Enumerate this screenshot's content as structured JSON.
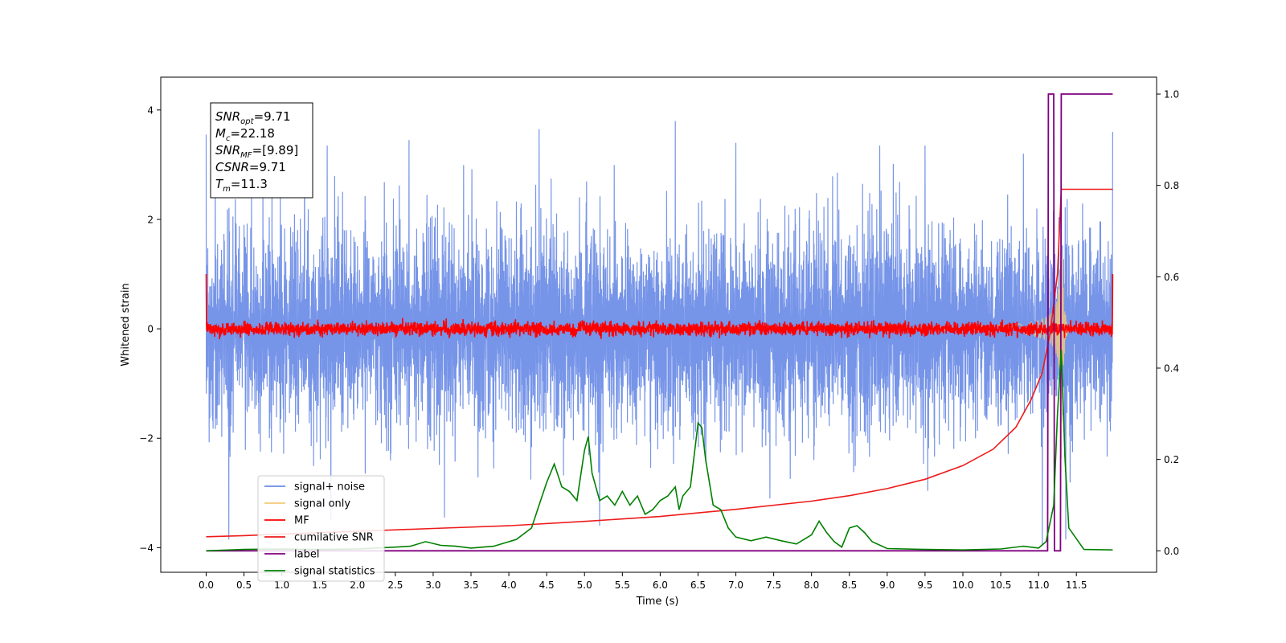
{
  "chart_data": {
    "type": "line",
    "xlabel": "Time (s)",
    "ylabel": "Whitened strain",
    "xlim": [
      -0.6,
      12.56
    ],
    "ylim": [
      -4.45,
      4.6
    ],
    "y2lim": [
      -0.047,
      1.037
    ],
    "x_ticks": [
      0.0,
      0.5,
      1.0,
      1.5,
      2.0,
      2.5,
      3.0,
      3.5,
      4.0,
      4.5,
      5.0,
      5.5,
      6.0,
      6.5,
      7.0,
      7.5,
      8.0,
      8.5,
      9.0,
      9.5,
      10.0,
      10.5,
      11.0,
      11.5
    ],
    "x_tick_labels": [
      "0.0",
      "0.5",
      "1.0",
      "1.5",
      "2.0",
      "2.5",
      "3.0",
      "3.5",
      "4.0",
      "4.5",
      "5.0",
      "5.5",
      "6.0",
      "6.5",
      "7.0",
      "7.5",
      "8.0",
      "8.5",
      "9.0",
      "9.5",
      "10.0",
      "10.5",
      "11.0",
      "11.5"
    ],
    "y_ticks": [
      -4,
      -2,
      0,
      2,
      4
    ],
    "y_tick_labels": [
      "−4",
      "−2",
      "0",
      "2",
      "4"
    ],
    "y2_ticks": [
      0.0,
      0.2,
      0.4,
      0.6,
      0.8,
      1.0
    ],
    "y2_tick_labels": [
      "0.0",
      "0.2",
      "0.4",
      "0.6",
      "0.8",
      "1.0"
    ],
    "grid": false,
    "legend_position": "bottom-left",
    "colors": {
      "signal_noise": "#6a8be6",
      "signal_only": "#f5c978",
      "mf": "#ff0000",
      "cumulative_snr": "#ee1a1a",
      "label": "#800080",
      "signal_statistics": "#008000"
    },
    "annotation": {
      "lines": [
        {
          "sym": "SNR",
          "sub": "opt",
          "val": "=9.71"
        },
        {
          "sym": "M",
          "sub": "c",
          "val": "=22.18"
        },
        {
          "sym": "SNR",
          "sub": "MF",
          "val": "=[9.89]"
        },
        {
          "sym": "CSNR",
          "sub": "",
          "val": "=9.71"
        },
        {
          "sym": "T",
          "sub": "m",
          "val": "=11.3"
        }
      ]
    },
    "series": [
      {
        "name": "signal+ noise",
        "axis": "left",
        "style": "noise",
        "x_range": [
          0.0,
          11.98
        ],
        "amplitude": 1.9,
        "notable_peaks": [
          [
            0.0,
            3.55
          ],
          [
            0.12,
            3.35
          ],
          [
            0.3,
            -3.85
          ],
          [
            1.3,
            3.35
          ],
          [
            1.6,
            3.35
          ],
          [
            2.68,
            3.45
          ],
          [
            4.4,
            3.65
          ],
          [
            6.2,
            3.8
          ],
          [
            7.0,
            3.4
          ],
          [
            8.9,
            3.35
          ],
          [
            9.5,
            3.35
          ],
          [
            10.8,
            3.2
          ],
          [
            11.3,
            3.55
          ],
          [
            11.98,
            3.6
          ],
          [
            1.65,
            -3.5
          ],
          [
            3.15,
            -3.45
          ],
          [
            5.2,
            -3.6
          ],
          [
            7.45,
            -3.1
          ],
          [
            11.05,
            -3.95
          ],
          [
            11.36,
            -3.85
          ]
        ]
      },
      {
        "name": "signal only",
        "axis": "left",
        "style": "chirp",
        "x_range": [
          0.0,
          11.98
        ],
        "merger_time": 11.3,
        "peak_amplitude": 2.6
      },
      {
        "name": "MF",
        "axis": "left",
        "style": "noise",
        "x_range": [
          0.0,
          11.98
        ],
        "amplitude": 0.13,
        "edge_values": [
          1.0,
          1.0
        ]
      },
      {
        "name": "cumilative SNR",
        "axis": "left",
        "x": [
          0.0,
          0.5,
          1.0,
          2.0,
          3.0,
          4.0,
          5.0,
          6.0,
          7.0,
          8.0,
          8.5,
          9.0,
          9.5,
          10.0,
          10.4,
          10.7,
          10.9,
          11.05,
          11.15,
          11.25,
          11.3,
          11.98
        ],
        "y": [
          -3.8,
          -3.78,
          -3.75,
          -3.7,
          -3.65,
          -3.6,
          -3.52,
          -3.43,
          -3.3,
          -3.15,
          -3.05,
          -2.92,
          -2.75,
          -2.5,
          -2.2,
          -1.8,
          -1.3,
          -0.8,
          -0.1,
          1.0,
          2.55,
          2.55
        ]
      },
      {
        "name": "label",
        "axis": "right",
        "x": [
          0.0,
          11.12,
          11.13,
          11.2,
          11.21,
          11.29,
          11.3,
          11.98
        ],
        "y": [
          0.0,
          0.0,
          1.0,
          1.0,
          0.0,
          0.0,
          1.0,
          1.0
        ]
      },
      {
        "name": "signal statistics",
        "axis": "right",
        "x": [
          0.0,
          0.5,
          1.0,
          1.5,
          2.0,
          2.5,
          2.7,
          2.9,
          3.1,
          3.3,
          3.5,
          3.8,
          4.1,
          4.3,
          4.4,
          4.5,
          4.6,
          4.7,
          4.8,
          4.9,
          5.0,
          5.05,
          5.1,
          5.2,
          5.3,
          5.4,
          5.5,
          5.6,
          5.7,
          5.8,
          5.9,
          6.0,
          6.1,
          6.2,
          6.25,
          6.3,
          6.4,
          6.5,
          6.55,
          6.6,
          6.7,
          6.8,
          6.9,
          7.0,
          7.2,
          7.4,
          7.6,
          7.8,
          8.0,
          8.1,
          8.2,
          8.3,
          8.4,
          8.5,
          8.6,
          8.7,
          8.8,
          9.0,
          9.5,
          10.0,
          10.5,
          10.8,
          11.0,
          11.1,
          11.2,
          11.25,
          11.3,
          11.35,
          11.4,
          11.6,
          11.98
        ],
        "y": [
          0.0,
          0.003,
          0.004,
          0.003,
          0.004,
          0.008,
          0.01,
          0.02,
          0.012,
          0.01,
          0.006,
          0.01,
          0.025,
          0.05,
          0.1,
          0.15,
          0.19,
          0.14,
          0.13,
          0.11,
          0.22,
          0.25,
          0.17,
          0.11,
          0.12,
          0.1,
          0.13,
          0.1,
          0.12,
          0.08,
          0.09,
          0.11,
          0.12,
          0.14,
          0.09,
          0.12,
          0.14,
          0.28,
          0.27,
          0.2,
          0.1,
          0.09,
          0.05,
          0.03,
          0.022,
          0.03,
          0.022,
          0.015,
          0.035,
          0.065,
          0.04,
          0.02,
          0.008,
          0.05,
          0.055,
          0.04,
          0.02,
          0.005,
          0.003,
          0.002,
          0.004,
          0.01,
          0.006,
          0.02,
          0.1,
          0.3,
          0.44,
          0.2,
          0.05,
          0.003,
          0.002
        ]
      }
    ]
  }
}
